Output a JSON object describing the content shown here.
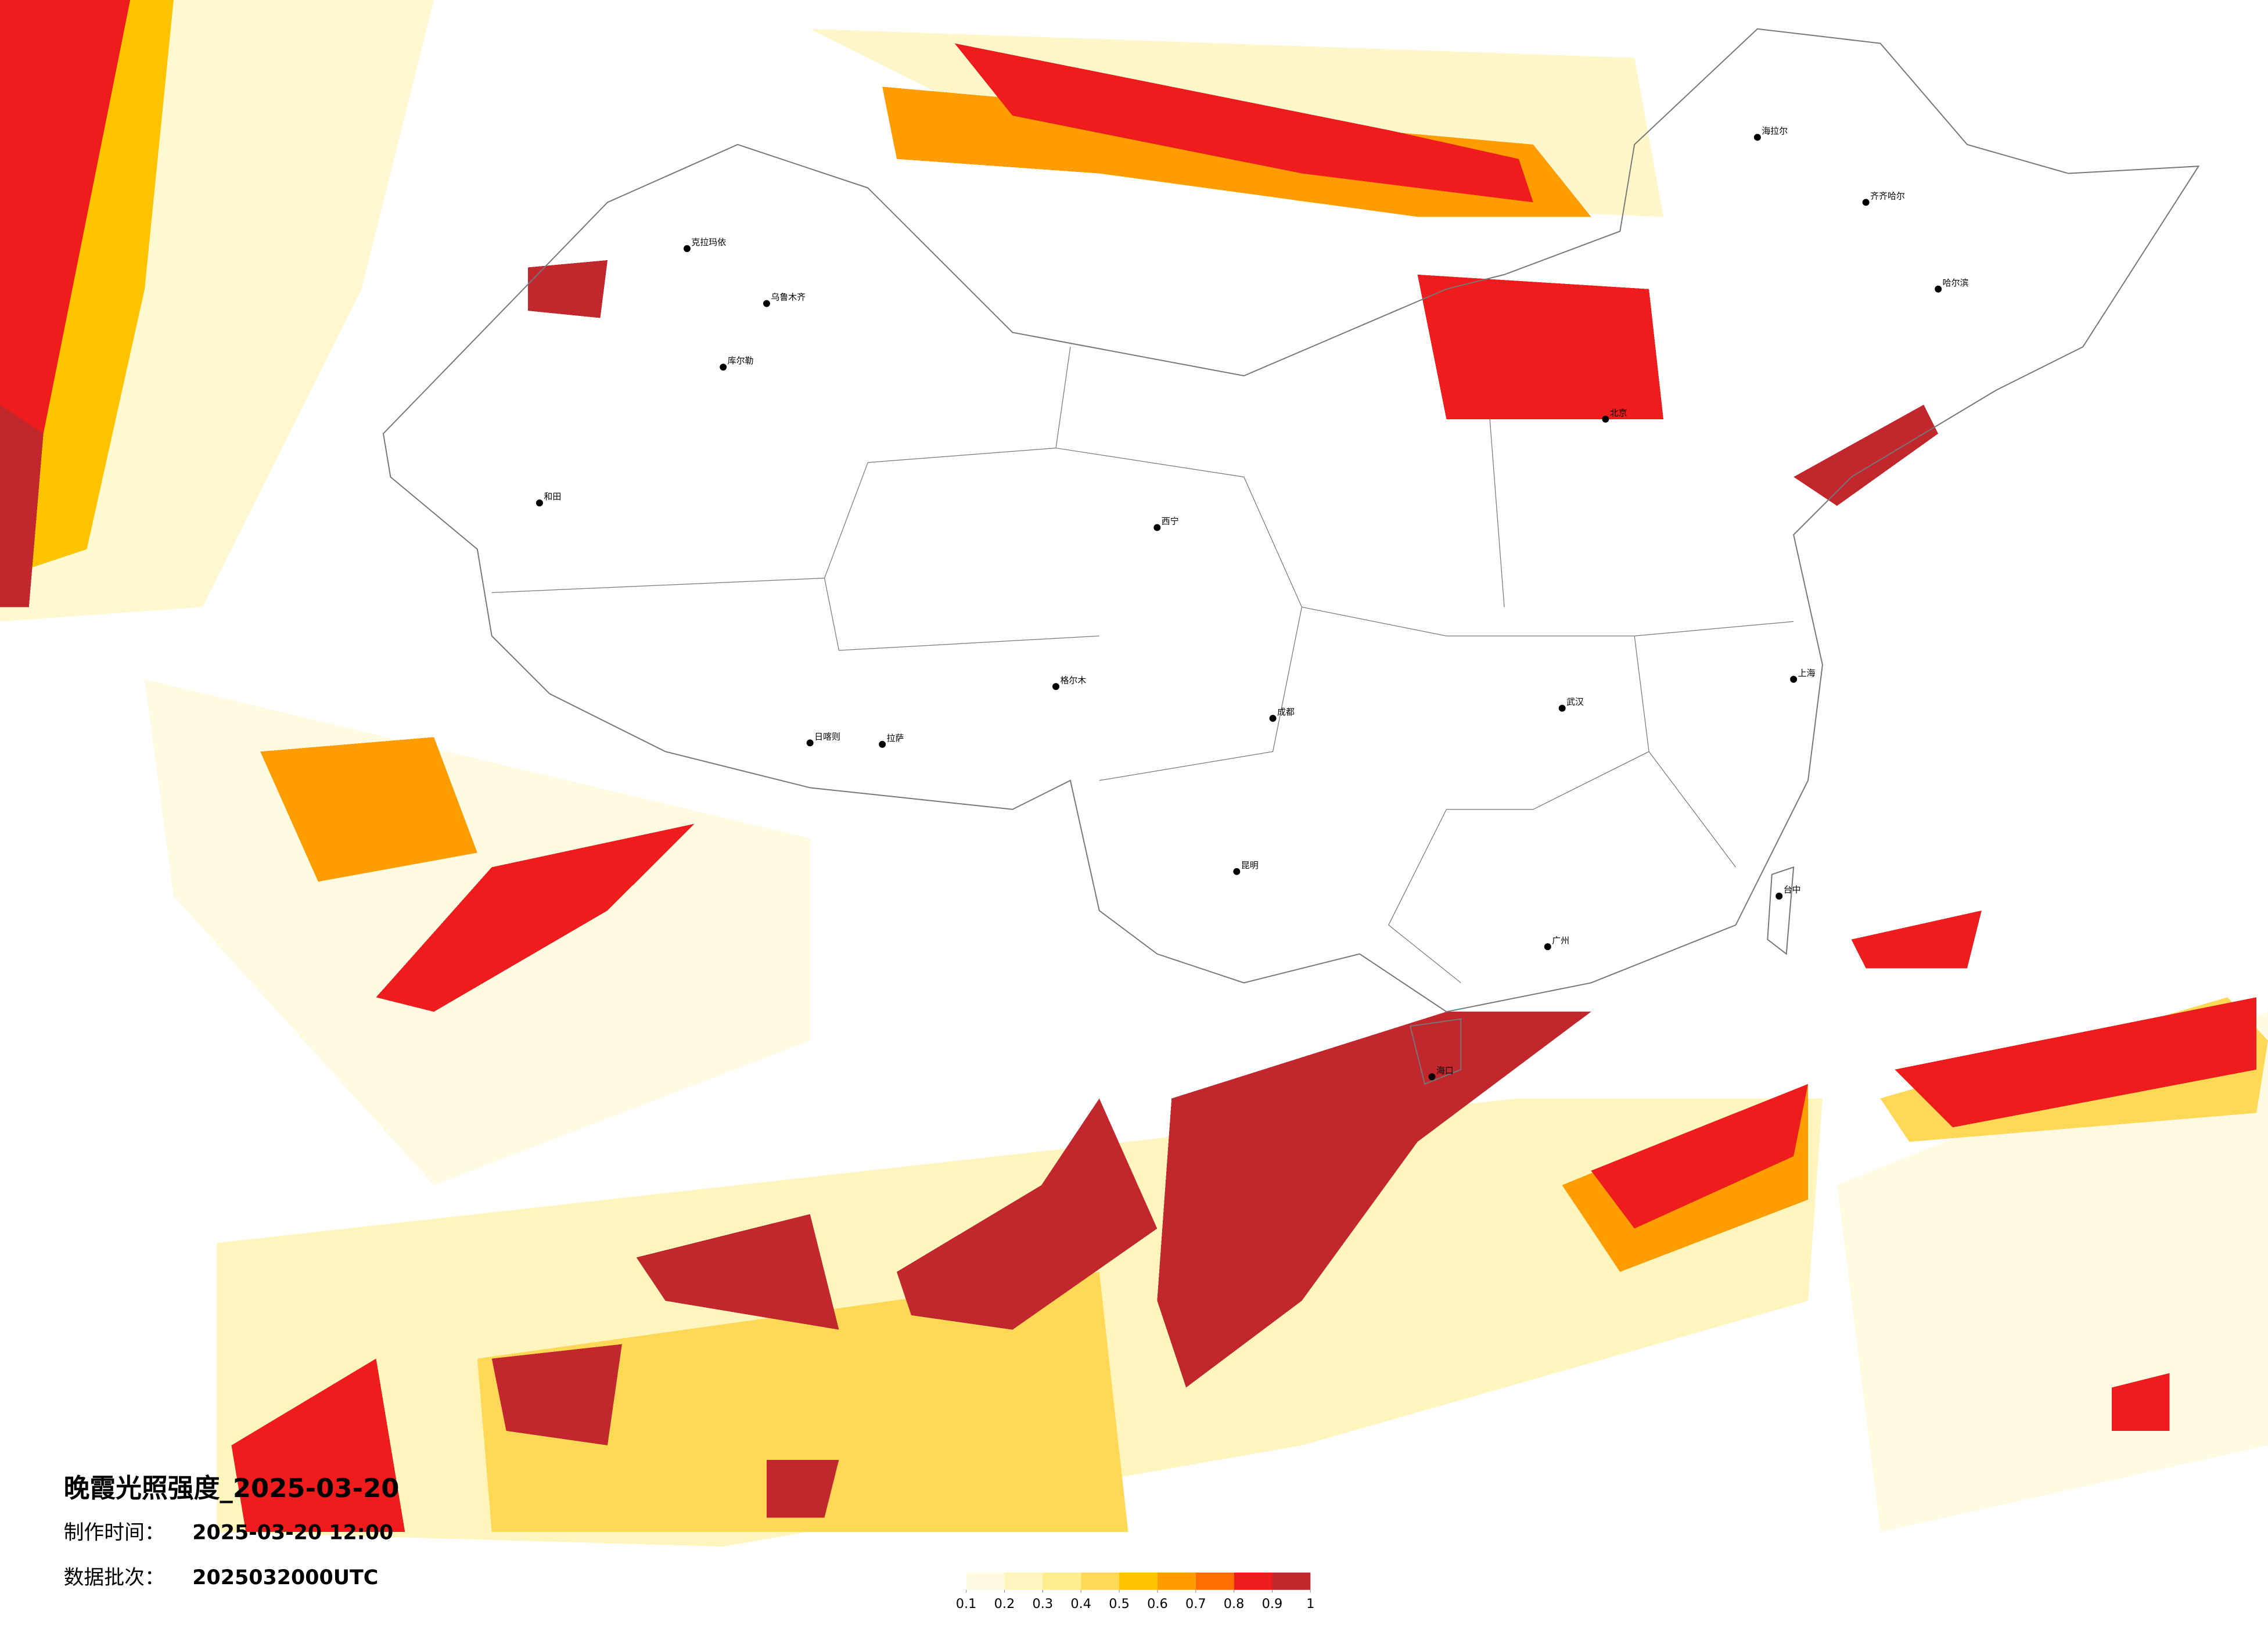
{
  "title": "晚霞光照强度_2025-03-20",
  "production_time": {
    "label": "制作时间：",
    "value": "2025-03-20 12:00"
  },
  "data_batch": {
    "label": "数据批次：",
    "value": "2025032000UTC"
  },
  "legend": {
    "ticks": [
      0.1,
      0.2,
      0.3,
      0.4,
      0.5,
      0.6,
      0.7,
      0.8,
      0.9,
      1
    ],
    "colors": [
      "#fffbe3",
      "#fff5bd",
      "#ffec8c",
      "#ffd955",
      "#ffc300",
      "#ff9d00",
      "#ff6c00",
      "#ee1c1c",
      "#c1272d"
    ]
  },
  "cities": [
    "克拉玛依",
    "乌鲁木齐",
    "库尔勒",
    "和田",
    "拉萨",
    "日喀则",
    "格尔木",
    "西宁",
    "成都",
    "昆明",
    "海拉尔",
    "齐齐哈尔",
    "哈尔滨",
    "北京",
    "上海",
    "武汉",
    "广州",
    "台中",
    "海口"
  ]
}
